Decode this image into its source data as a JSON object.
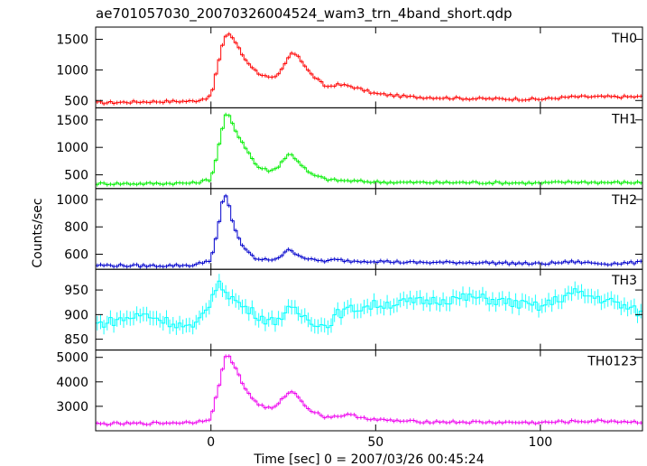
{
  "title": "ae701057030_20070326004524_wam3_trn_4band_short.qdp",
  "ylabel": "Counts/sec",
  "xlabel": "Time [sec] 0 = 2007/03/26 00:45:24",
  "chart_data": {
    "type": "line",
    "x_range": [
      -35,
      131
    ],
    "x_ticks": [
      0,
      50,
      100
    ],
    "x_tick_labels": [
      "0",
      "50",
      "100"
    ],
    "x_profile": [
      -35,
      -20,
      -5,
      0,
      2,
      4,
      5,
      7,
      10,
      14,
      18,
      20,
      22,
      24,
      26,
      30,
      35,
      38,
      42,
      50,
      60,
      80,
      100,
      110,
      120,
      130
    ],
    "panels": [
      {
        "name": "TH0",
        "color": "#ff0000",
        "ylim": [
          380,
          1700
        ],
        "y_ticks": [
          500,
          1000,
          1500
        ],
        "y_tick_labels": [
          "500",
          "1000",
          "1500"
        ],
        "values": [
          460,
          480,
          490,
          560,
          1050,
          1500,
          1620,
          1500,
          1200,
          960,
          860,
          880,
          1050,
          1250,
          1270,
          950,
          720,
          760,
          740,
          610,
          560,
          530,
          520,
          560,
          560,
          560
        ]
      },
      {
        "name": "TH1",
        "color": "#00ee00",
        "ylim": [
          250,
          1720
        ],
        "y_ticks": [
          500,
          1000,
          1500
        ],
        "y_tick_labels": [
          "500",
          "1000",
          "1500"
        ],
        "values": [
          340,
          340,
          350,
          420,
          900,
          1500,
          1650,
          1350,
          1050,
          650,
          570,
          620,
          780,
          890,
          780,
          520,
          420,
          400,
          390,
          370,
          360,
          360,
          350,
          370,
          360,
          360
        ]
      },
      {
        "name": "TH2",
        "color": "#0000cc",
        "ylim": [
          490,
          1080
        ],
        "y_ticks": [
          600,
          800,
          1000
        ],
        "y_tick_labels": [
          "600",
          "800",
          "1000"
        ],
        "values": [
          520,
          515,
          520,
          560,
          760,
          1050,
          1000,
          800,
          640,
          560,
          560,
          570,
          600,
          640,
          600,
          560,
          550,
          560,
          550,
          550,
          540,
          540,
          530,
          545,
          530,
          540
        ]
      },
      {
        "name": "TH3",
        "color": "#00ffff",
        "ylim": [
          828,
          992
        ],
        "y_ticks": [
          850,
          900,
          950
        ],
        "y_tick_labels": [
          "850",
          "900",
          "950"
        ],
        "values": [
          880,
          900,
          870,
          930,
          960,
          955,
          945,
          930,
          915,
          900,
          885,
          890,
          900,
          910,
          905,
          890,
          875,
          900,
          910,
          920,
          925,
          935,
          915,
          945,
          930,
          905
        ]
      },
      {
        "name": "TH0123",
        "color": "#ee00ee",
        "ylim": [
          2000,
          5300
        ],
        "y_ticks": [
          3000,
          4000,
          5000
        ],
        "y_tick_labels": [
          "3000",
          "4000",
          "5000"
        ],
        "values": [
          2280,
          2300,
          2350,
          2500,
          3600,
          4800,
          5200,
          4700,
          3800,
          3100,
          2900,
          3000,
          3350,
          3650,
          3450,
          2850,
          2550,
          2600,
          2650,
          2450,
          2380,
          2350,
          2330,
          2380,
          2400,
          2350
        ]
      }
    ]
  }
}
